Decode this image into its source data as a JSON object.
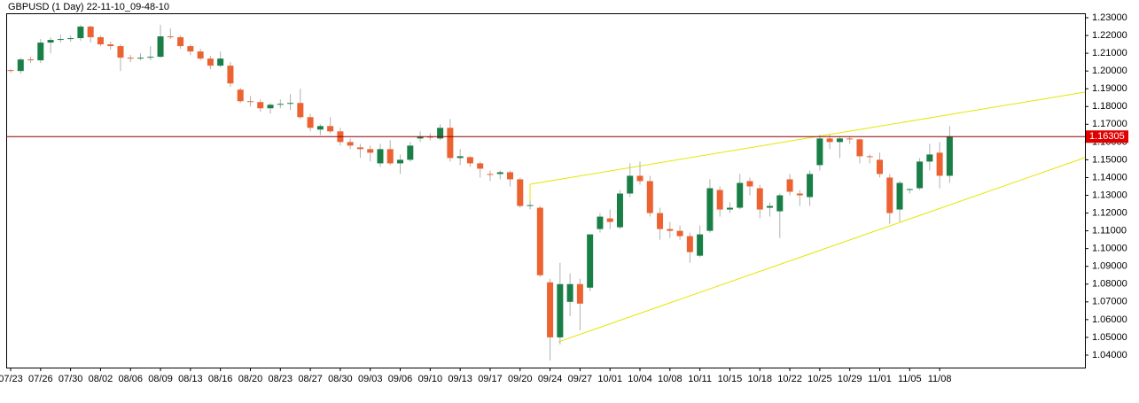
{
  "chart_data": {
    "type": "candlestick",
    "title": "GBPUSD (1 Day) 22-11-10_09-48-10",
    "categories": [
      "07/23",
      null,
      null,
      "07/26",
      null,
      null,
      "07/30",
      null,
      null,
      "08/02",
      null,
      null,
      "08/06",
      null,
      null,
      "08/09",
      null,
      null,
      "08/13",
      null,
      null,
      "08/16",
      null,
      null,
      "08/20",
      null,
      null,
      "08/23",
      null,
      null,
      "08/27",
      null,
      null,
      "08/30",
      null,
      null,
      "09/03",
      null,
      null,
      "09/06",
      null,
      null,
      "09/10",
      null,
      null,
      "09/13",
      null,
      null,
      "09/17",
      null,
      null,
      "09/20",
      null,
      null,
      "09/24",
      null,
      null,
      "09/27",
      null,
      null,
      "10/01",
      null,
      null,
      "10/04",
      null,
      null,
      "10/08",
      null,
      null,
      "10/11",
      null,
      null,
      "10/15",
      null,
      null,
      "10/18",
      null,
      null,
      "10/22",
      null,
      null,
      "10/25",
      null,
      null,
      "10/29",
      null,
      null,
      "11/01",
      null,
      null,
      "11/05",
      null,
      null,
      "11/08",
      null
    ],
    "open": [
      1.2005,
      1.2,
      1.2065,
      1.206,
      1.216,
      1.2175,
      1.218,
      1.2185,
      1.225,
      1.219,
      1.215,
      1.214,
      1.2075,
      1.207,
      1.2075,
      1.208,
      1.2195,
      1.219,
      1.214,
      1.211,
      1.207,
      1.203,
      1.203,
      1.1895,
      1.183,
      1.1825,
      1.179,
      1.181,
      1.1815,
      1.182,
      1.174,
      1.167,
      1.169,
      1.166,
      1.16,
      1.157,
      1.156,
      1.148,
      1.156,
      1.148,
      1.15,
      1.162,
      1.163,
      1.162,
      1.168,
      1.151,
      1.1515,
      1.148,
      1.142,
      1.142,
      1.143,
      1.139,
      1.124,
      1.123,
      1.081,
      1.05,
      1.07,
      1.08,
      1.078,
      1.111,
      1.117,
      1.112,
      1.131,
      1.141,
      1.138,
      1.12,
      1.111,
      1.11,
      1.107,
      1.096,
      1.11,
      1.133,
      1.122,
      1.123,
      1.138,
      1.134,
      1.123,
      1.121,
      1.139,
      1.131,
      1.129,
      1.147,
      1.162,
      1.16,
      1.162,
      1.1615,
      1.152,
      1.15,
      1.14,
      1.122,
      1.133,
      1.134,
      1.149,
      1.154,
      1.141
    ],
    "high": [
      1.201,
      1.2075,
      1.208,
      1.218,
      1.219,
      1.2205,
      1.22,
      1.226,
      1.2255,
      1.22,
      1.2165,
      1.215,
      1.209,
      1.21,
      1.214,
      1.226,
      1.224,
      1.22,
      1.215,
      1.2125,
      1.2085,
      1.211,
      1.205,
      1.1905,
      1.186,
      1.184,
      1.182,
      1.184,
      1.187,
      1.19,
      1.176,
      1.17,
      1.174,
      1.168,
      1.162,
      1.159,
      1.158,
      1.159,
      1.161,
      1.153,
      1.16,
      1.166,
      1.165,
      1.17,
      1.173,
      1.156,
      1.152,
      1.149,
      1.144,
      1.144,
      1.144,
      1.14,
      1.127,
      1.124,
      1.083,
      1.092,
      1.086,
      1.083,
      1.108,
      1.12,
      1.122,
      1.133,
      1.148,
      1.149,
      1.141,
      1.123,
      1.115,
      1.113,
      1.109,
      1.113,
      1.139,
      1.135,
      1.126,
      1.142,
      1.14,
      1.136,
      1.126,
      1.131,
      1.142,
      1.133,
      1.144,
      1.164,
      1.164,
      1.163,
      1.163,
      1.162,
      1.153,
      1.154,
      1.142,
      1.138,
      1.134,
      1.151,
      1.159,
      1.16,
      1.169
    ],
    "low": [
      1.199,
      1.1985,
      1.2045,
      1.2045,
      1.21,
      1.216,
      1.2165,
      1.217,
      1.216,
      1.214,
      1.212,
      1.2,
      1.205,
      1.206,
      1.206,
      1.2075,
      1.218,
      1.2125,
      1.209,
      1.206,
      1.201,
      1.202,
      1.191,
      1.182,
      1.18,
      1.177,
      1.176,
      1.179,
      1.178,
      1.173,
      1.166,
      1.164,
      1.165,
      1.158,
      1.156,
      1.151,
      1.149,
      1.146,
      1.147,
      1.142,
      1.149,
      1.16,
      1.161,
      1.161,
      1.149,
      1.147,
      1.146,
      1.14,
      1.138,
      1.139,
      1.135,
      1.123,
      1.122,
      1.084,
      1.037,
      1.046,
      1.062,
      1.054,
      1.076,
      1.109,
      1.111,
      1.111,
      1.129,
      1.136,
      1.118,
      1.105,
      1.106,
      1.105,
      1.092,
      1.095,
      1.109,
      1.118,
      1.12,
      1.122,
      1.13,
      1.117,
      1.118,
      1.106,
      1.13,
      1.124,
      1.124,
      1.144,
      1.156,
      1.151,
      1.159,
      1.148,
      1.148,
      1.14,
      1.114,
      1.115,
      1.131,
      1.133,
      1.144,
      1.134,
      1.137
    ],
    "close": [
      1.2,
      1.2065,
      1.206,
      1.216,
      1.2175,
      1.218,
      1.2185,
      1.225,
      1.219,
      1.215,
      1.214,
      1.2075,
      1.207,
      1.2075,
      1.208,
      1.2195,
      1.219,
      1.214,
      1.211,
      1.207,
      1.203,
      1.207,
      1.193,
      1.183,
      1.1825,
      1.179,
      1.181,
      1.1815,
      1.182,
      1.174,
      1.168,
      1.169,
      1.166,
      1.16,
      1.158,
      1.156,
      1.154,
      1.156,
      1.148,
      1.15,
      1.158,
      1.163,
      1.1625,
      1.168,
      1.151,
      1.152,
      1.148,
      1.145,
      1.1415,
      1.143,
      1.139,
      1.124,
      1.1245,
      1.085,
      1.05,
      1.08,
      1.08,
      1.069,
      1.108,
      1.118,
      1.115,
      1.131,
      1.141,
      1.138,
      1.12,
      1.111,
      1.11,
      1.107,
      1.098,
      1.108,
      1.134,
      1.122,
      1.123,
      1.137,
      1.135,
      1.122,
      1.124,
      1.13,
      1.132,
      1.13,
      1.142,
      1.162,
      1.16,
      1.162,
      1.1615,
      1.152,
      1.1515,
      1.142,
      1.12,
      1.137,
      1.1335,
      1.149,
      1.153,
      1.141,
      1.163
    ],
    "up_color": "#1a7f47",
    "down_color": "#ec6231",
    "price_line": 1.16305,
    "ylim": [
      1.033,
      1.2325
    ],
    "yticks": [
      {
        "value": 1.04,
        "label": "1.04000"
      },
      {
        "value": 1.05,
        "label": "1.05000"
      },
      {
        "value": 1.06,
        "label": "1.06000"
      },
      {
        "value": 1.07,
        "label": "1.07000"
      },
      {
        "value": 1.08,
        "label": "1.08000"
      },
      {
        "value": 1.09,
        "label": "1.09000"
      },
      {
        "value": 1.1,
        "label": "1.10000"
      },
      {
        "value": 1.11,
        "label": "1.11000"
      },
      {
        "value": 1.12,
        "label": "1.12000"
      },
      {
        "value": 1.13,
        "label": "1.13000"
      },
      {
        "value": 1.14,
        "label": "1.14000"
      },
      {
        "value": 1.15,
        "label": "1.15000"
      },
      {
        "value": 1.16,
        "label": "1.16000"
      },
      {
        "value": 1.17,
        "label": "1.17000"
      },
      {
        "value": 1.18,
        "label": "1.18000"
      },
      {
        "value": 1.19,
        "label": "1.19000"
      },
      {
        "value": 1.2,
        "label": "1.20000"
      },
      {
        "value": 1.21,
        "label": "1.21000"
      },
      {
        "value": 1.22,
        "label": "1.22000"
      },
      {
        "value": 1.23,
        "label": "1.23000"
      }
    ]
  }
}
